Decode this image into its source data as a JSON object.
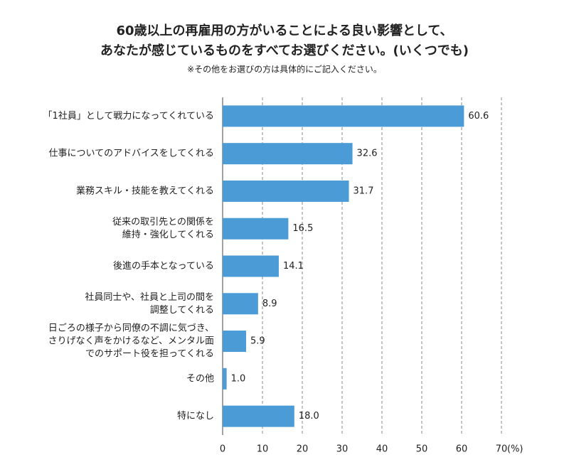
{
  "chart_data": {
    "type": "hbar",
    "title": [
      "60歳以上の再雇用の方がいることによる良い影響として、",
      "あなたが感じているものをすべてお選びください。(いくつでも)"
    ],
    "subtitle": "※その他をお選びの方は具体的にご記入ください。",
    "categories": [
      [
        "「1社員」として戦力になってくれている"
      ],
      [
        "仕事についてのアドバイスをしてくれる"
      ],
      [
        "業務スキル・技能を教えてくれる"
      ],
      [
        "従来の取引先との関係を",
        "維持・強化してくれる"
      ],
      [
        "後進の手本となっている"
      ],
      [
        "社員同士や、社員と上司の間を",
        "調整してくれる"
      ],
      [
        "日ごろの様子から同僚の不調に気づき、",
        "さりげなく声をかけるなど、メンタル面",
        "でのサポート役を担ってくれる"
      ],
      [
        "その他"
      ],
      [
        "特になし"
      ]
    ],
    "values": [
      60.6,
      32.6,
      31.7,
      16.5,
      14.1,
      8.9,
      5.9,
      1.0,
      18.0
    ],
    "value_labels": [
      "60.6",
      "32.6",
      "31.7",
      "16.5",
      "14.1",
      "8.9",
      "5.9",
      "1.0",
      "18.0"
    ],
    "color": "#4a9bd6",
    "xlim": [
      0,
      70
    ],
    "xticks": [
      0,
      10,
      20,
      30,
      40,
      50,
      60,
      70
    ],
    "x_unit": "(%)",
    "grid": true
  }
}
